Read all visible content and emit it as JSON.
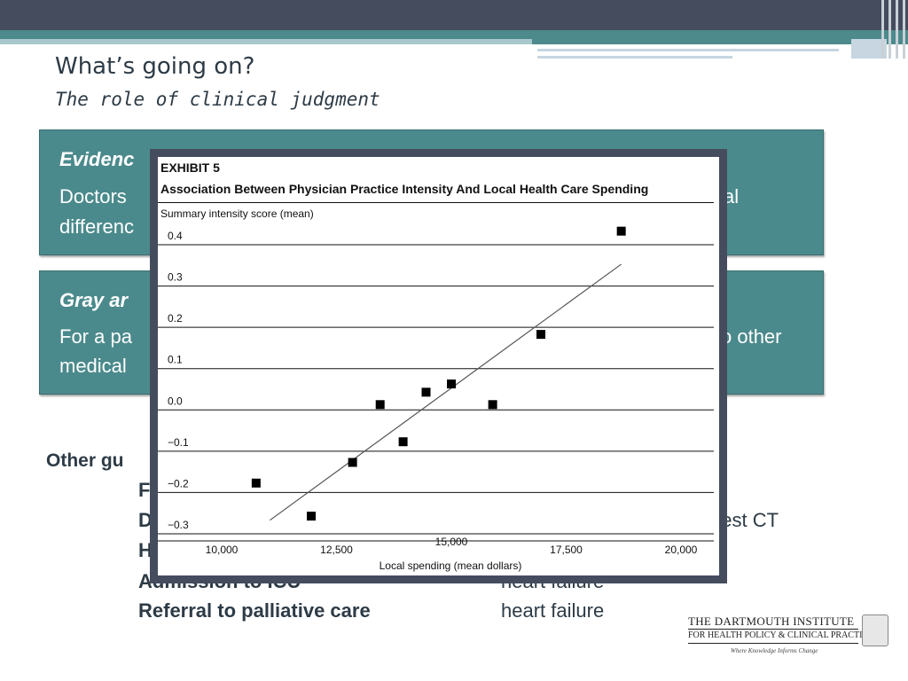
{
  "slide": {
    "title": "What’s going on?",
    "subtitle": "The role of clinical judgment"
  },
  "box1": {
    "heading": "Evidenc",
    "line1_left": "Doctors",
    "line1_right": "al",
    "line2_left": "differenc"
  },
  "box2": {
    "heading": "Gray ar",
    "line1_left": "For a pa",
    "line1_right": "o other",
    "line2_left": "medical"
  },
  "guidelines": {
    "heading": "Other gu",
    "rows": [
      {
        "label": "F",
        "value": ""
      },
      {
        "label": "D",
        "value": "chest CT"
      },
      {
        "label": "H",
        "value": ""
      },
      {
        "label": "Admission to ICU",
        "value": "heart failure"
      },
      {
        "label": "Referral to palliative care",
        "value": "heart failure"
      }
    ]
  },
  "logo": {
    "line1": "THE DARTMOUTH INSTITUTE",
    "line2": "FOR HEALTH POLICY & CLINICAL PRACTICE",
    "tagline": "Where Knowledge Informs Change"
  },
  "colors": {
    "banner_dark": "#454c5e",
    "teal": "#4b8a8c",
    "text_dark": "#2d3b46"
  },
  "chart_data": {
    "type": "scatter",
    "label": "EXHIBIT 5",
    "title": "Association Between Physician Practice Intensity And Local Health Care Spending",
    "ylabel": "Summary intensity score (mean)",
    "xlabel": "Local spending (mean dollars)",
    "xlim": [
      9500,
      20500
    ],
    "ylim": [
      -0.33,
      0.42
    ],
    "x_ticks": [
      "10,000",
      "12,500",
      "15,000",
      "17,500",
      "20,000"
    ],
    "x_tick_values": [
      10000,
      12500,
      15000,
      17500,
      20000
    ],
    "y_ticks": [
      "0.4",
      "0.3",
      "0.2",
      "0.1",
      "0.0",
      "−0.1",
      "−0.2",
      "−0.3"
    ],
    "y_tick_values": [
      0.4,
      0.3,
      0.2,
      0.1,
      0.0,
      -0.1,
      -0.2,
      -0.3
    ],
    "grid": "horizontal",
    "points": [
      {
        "x": 10750,
        "y": -0.19
      },
      {
        "x": 11950,
        "y": -0.27
      },
      {
        "x": 12850,
        "y": -0.14
      },
      {
        "x": 13450,
        "y": 0.0
      },
      {
        "x": 13950,
        "y": -0.09
      },
      {
        "x": 14450,
        "y": 0.03
      },
      {
        "x": 15000,
        "y": 0.05
      },
      {
        "x": 15900,
        "y": 0.0
      },
      {
        "x": 16950,
        "y": 0.17
      },
      {
        "x": 18700,
        "y": 0.42
      }
    ],
    "trendline": {
      "x": [
        11050,
        18700
      ],
      "y": [
        -0.28,
        0.34
      ]
    }
  }
}
